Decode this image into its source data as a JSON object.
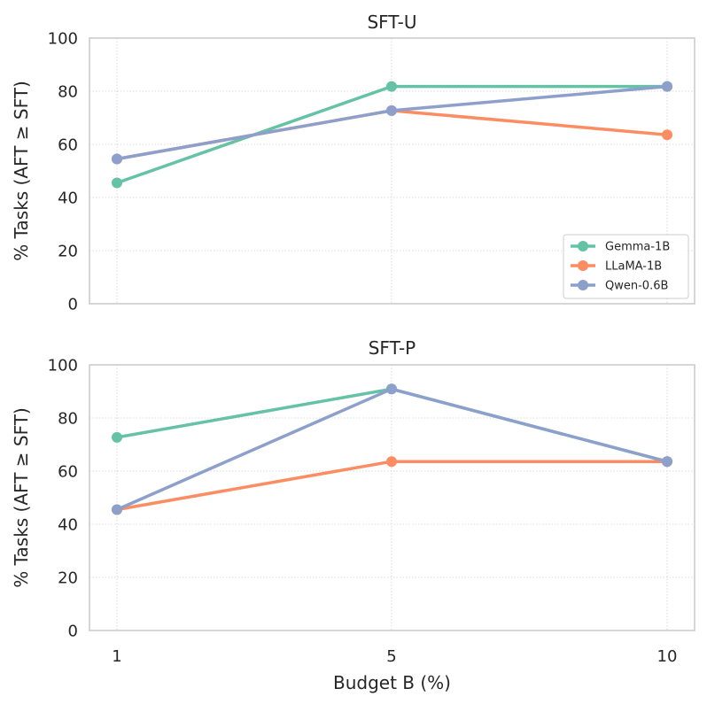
{
  "chart_data": [
    {
      "type": "line",
      "title": "SFT-U",
      "xlabel": "",
      "ylabel": "% Tasks (AFT ≥ SFT)",
      "x": [
        1,
        5,
        10
      ],
      "xtick_labels": [
        "1",
        "5",
        "10"
      ],
      "ylim": [
        0,
        100
      ],
      "yticks": [
        0,
        20,
        40,
        60,
        80,
        100
      ],
      "grid": true,
      "legend": "bottom-right",
      "series": [
        {
          "name": "Gemma-1B",
          "color": "#66c2a5",
          "values": [
            45.5,
            81.8,
            81.8
          ]
        },
        {
          "name": "LLaMA-1B",
          "color": "#fc8d62",
          "values": [
            54.5,
            72.7,
            63.6
          ]
        },
        {
          "name": "Qwen-0.6B",
          "color": "#8da0cb",
          "values": [
            54.5,
            72.7,
            81.8
          ]
        }
      ]
    },
    {
      "type": "line",
      "title": "SFT-P",
      "xlabel": "Budget B (%)",
      "ylabel": "% Tasks (AFT ≥ SFT)",
      "x": [
        1,
        5,
        10
      ],
      "xtick_labels": [
        "1",
        "5",
        "10"
      ],
      "ylim": [
        0,
        100
      ],
      "yticks": [
        0,
        20,
        40,
        60,
        80,
        100
      ],
      "grid": true,
      "legend": "none",
      "series": [
        {
          "name": "Gemma-1B",
          "color": "#66c2a5",
          "values": [
            72.7,
            90.9,
            63.6
          ]
        },
        {
          "name": "LLaMA-1B",
          "color": "#fc8d62",
          "values": [
            45.5,
            63.6,
            63.6
          ]
        },
        {
          "name": "Qwen-0.6B",
          "color": "#8da0cb",
          "values": [
            45.5,
            90.9,
            63.6
          ]
        }
      ]
    }
  ]
}
